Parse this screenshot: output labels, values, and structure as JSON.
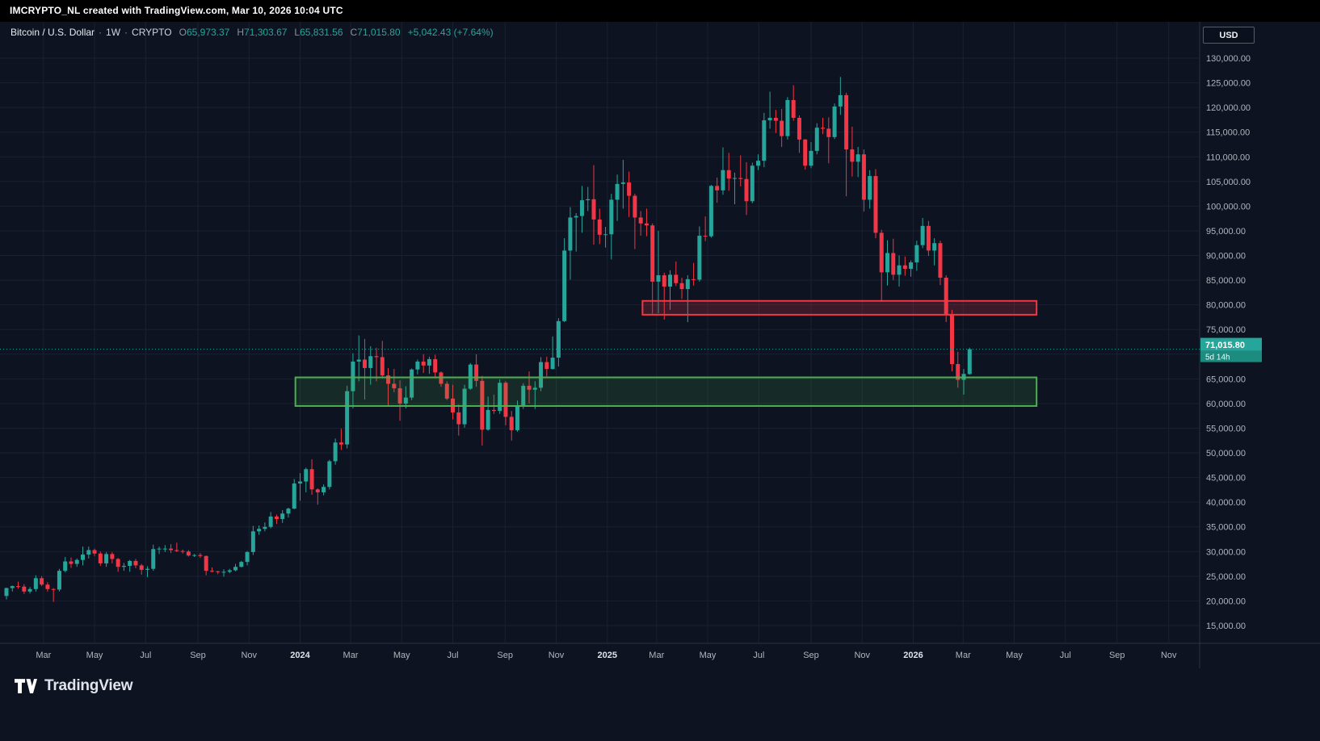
{
  "watermark": "IMCRYPTO_NL created with TradingView.com, Mar 10, 2026 10:04 UTC",
  "legend": {
    "symbol": "Bitcoin / U.S. Dollar",
    "sep": "·",
    "interval": "1W",
    "exchange": "CRYPTO",
    "open_label": "O",
    "open_value": "65,973.37",
    "high_label": "H",
    "high_value": "71,303.67",
    "low_label": "L",
    "low_value": "65,831.56",
    "close_label": "C",
    "close_value": "71,015.80",
    "change": "+5,042.43 (+7.64%)"
  },
  "currency_button": {
    "label": "USD"
  },
  "price_label": {
    "price": "71,015.80",
    "countdown": "5d 14h"
  },
  "logo": {
    "wordmark": "TradingView"
  },
  "colors": {
    "background": "#0d1321",
    "grid": "#1a2132",
    "axis_text": "#b2b5be",
    "axis_text_major": "#dde1ea",
    "separator": "#2a3140",
    "up": "#26a69a",
    "down": "#f23645",
    "price_line": "#26a69a",
    "label_bg": "#26a69a",
    "countdown_bg": "#1d8c80",
    "zone_support_stroke": "#4caf50",
    "zone_resistance_stroke": "#f23645"
  },
  "chart_data": {
    "type": "candlestick",
    "symbol": "BTCUSD",
    "interval": "1W",
    "title": "Bitcoin / U.S. Dollar weekly candles on CRYPTO, with support zone 59,500-65,300 and resistance zone 78,000-80,800",
    "current_price": 71015.8,
    "y_axis": {
      "min": 15000,
      "max": 130000,
      "step": 5000,
      "labels": [
        "130,000.00",
        "125,000.00",
        "120,000.00",
        "115,000.00",
        "110,000.00",
        "105,000.00",
        "100,000.00",
        "95,000.00",
        "90,000.00",
        "85,000.00",
        "80,000.00",
        "75,000.00",
        "70,000.00",
        "65,000.00",
        "60,000.00",
        "55,000.00",
        "50,000.00",
        "45,000.00",
        "40,000.00",
        "35,000.00",
        "30,000.00",
        "25,000.00",
        "20,000.00",
        "15,000.00"
      ]
    },
    "x_axis": {
      "labels": [
        {
          "text": "Mar",
          "week": 6.3,
          "major": false
        },
        {
          "text": "May",
          "week": 15,
          "major": false
        },
        {
          "text": "Jul",
          "week": 23.7,
          "major": false
        },
        {
          "text": "Sep",
          "week": 32.6,
          "major": false
        },
        {
          "text": "Nov",
          "week": 41.3,
          "major": false
        },
        {
          "text": "2024",
          "week": 50,
          "major": true
        },
        {
          "text": "Mar",
          "week": 58.6,
          "major": false
        },
        {
          "text": "May",
          "week": 67.3,
          "major": false
        },
        {
          "text": "Jul",
          "week": 76,
          "major": false
        },
        {
          "text": "Sep",
          "week": 84.9,
          "major": false
        },
        {
          "text": "Nov",
          "week": 93.6,
          "major": false
        },
        {
          "text": "2025",
          "week": 102.3,
          "major": true
        },
        {
          "text": "Mar",
          "week": 110.7,
          "major": false
        },
        {
          "text": "May",
          "week": 119.4,
          "major": false
        },
        {
          "text": "Jul",
          "week": 128.1,
          "major": false
        },
        {
          "text": "Sep",
          "week": 137,
          "major": false
        },
        {
          "text": "Nov",
          "week": 145.7,
          "major": false
        },
        {
          "text": "2026",
          "week": 154.4,
          "major": true
        },
        {
          "text": "Mar",
          "week": 162.9,
          "major": false
        },
        {
          "text": "May",
          "week": 171.6,
          "major": false
        },
        {
          "text": "Jul",
          "week": 180.3,
          "major": false
        },
        {
          "text": "Sep",
          "week": 189.1,
          "major": false
        },
        {
          "text": "Nov",
          "week": 197.9,
          "major": false
        }
      ]
    },
    "zones": [
      {
        "name": "support-zone",
        "week_start": 49.2,
        "week_end": 175.4,
        "price_top": 65300,
        "price_bottom": 59500,
        "stroke": "#4caf50",
        "fill": "rgba(76,175,80,0.16)"
      },
      {
        "name": "resistance-zone",
        "week_start": 108.3,
        "week_end": 175.4,
        "price_top": 80800,
        "price_bottom": 78000,
        "stroke": "#f23645",
        "fill": "rgba(242,54,69,0.2)"
      }
    ],
    "columns": [
      "open",
      "high",
      "low",
      "close"
    ],
    "candles": [
      [
        21000,
        22700,
        20300,
        22600
      ],
      [
        22600,
        23100,
        21900,
        23000
      ],
      [
        23000,
        23900,
        22500,
        22900
      ],
      [
        22900,
        23400,
        21400,
        21900
      ],
      [
        21900,
        22800,
        21500,
        22400
      ],
      [
        22400,
        25200,
        21900,
        24600
      ],
      [
        24600,
        25000,
        23000,
        23300
      ],
      [
        23300,
        23800,
        21900,
        22400
      ],
      [
        22400,
        22600,
        19800,
        22300
      ],
      [
        22300,
        26500,
        21900,
        26100
      ],
      [
        26100,
        28900,
        25800,
        28000
      ],
      [
        28000,
        28800,
        26700,
        27500
      ],
      [
        27500,
        28600,
        26900,
        28300
      ],
      [
        28300,
        31000,
        27200,
        29400
      ],
      [
        29400,
        31000,
        28600,
        30300
      ],
      [
        30300,
        30600,
        29100,
        29600
      ],
      [
        29600,
        30000,
        27100,
        27600
      ],
      [
        27600,
        29900,
        26900,
        29500
      ],
      [
        29500,
        29900,
        27600,
        28500
      ],
      [
        28500,
        28700,
        25900,
        26900
      ],
      [
        26900,
        27700,
        26100,
        27100
      ],
      [
        27100,
        28300,
        25900,
        28100
      ],
      [
        28100,
        28500,
        26600,
        27200
      ],
      [
        27200,
        27500,
        25300,
        26300
      ],
      [
        26300,
        27000,
        24800,
        26500
      ],
      [
        26500,
        31400,
        26100,
        30500
      ],
      [
        30500,
        31000,
        29500,
        30600
      ],
      [
        30600,
        31300,
        29900,
        30600
      ],
      [
        30600,
        31500,
        29700,
        30300
      ],
      [
        30300,
        31800,
        29900,
        30100
      ],
      [
        30100,
        30400,
        29600,
        30000
      ],
      [
        30000,
        30300,
        29000,
        29200
      ],
      [
        29200,
        29500,
        28900,
        29300
      ],
      [
        29300,
        29700,
        28700,
        29100
      ],
      [
        29100,
        29200,
        25200,
        26100
      ],
      [
        26100,
        26800,
        25800,
        26000
      ],
      [
        26000,
        26100,
        25400,
        25900
      ],
      [
        25900,
        26400,
        24900,
        25900
      ],
      [
        25900,
        26500,
        25600,
        26200
      ],
      [
        26200,
        27500,
        26000,
        26900
      ],
      [
        26900,
        28100,
        26800,
        27900
      ],
      [
        27900,
        30100,
        27200,
        29900
      ],
      [
        29900,
        35200,
        29300,
        34100
      ],
      [
        34100,
        35300,
        33400,
        34600
      ],
      [
        34600,
        35900,
        34100,
        35000
      ],
      [
        35000,
        38000,
        34700,
        37100
      ],
      [
        37100,
        37500,
        35600,
        36600
      ],
      [
        36600,
        38400,
        35800,
        37700
      ],
      [
        37700,
        38900,
        36900,
        38700
      ],
      [
        38700,
        44700,
        38600,
        43800
      ],
      [
        43800,
        45900,
        40300,
        44200
      ],
      [
        44200,
        47000,
        42000,
        46700
      ],
      [
        46700,
        48700,
        41500,
        42600
      ],
      [
        42600,
        42800,
        39500,
        42000
      ],
      [
        42000,
        43600,
        41400,
        43100
      ],
      [
        43100,
        48600,
        42600,
        48300
      ],
      [
        48300,
        52900,
        47600,
        52100
      ],
      [
        52100,
        54900,
        50600,
        51700
      ],
      [
        51700,
        63600,
        50900,
        62500
      ],
      [
        62500,
        70200,
        59000,
        68500
      ],
      [
        68500,
        73800,
        64500,
        68900
      ],
      [
        68900,
        73100,
        60800,
        67200
      ],
      [
        67200,
        71600,
        63800,
        69600
      ],
      [
        69600,
        71300,
        64500,
        69400
      ],
      [
        69400,
        72700,
        65100,
        65700
      ],
      [
        65700,
        67200,
        59600,
        64000
      ],
      [
        64000,
        67000,
        62300,
        63100
      ],
      [
        63100,
        64700,
        56500,
        60000
      ],
      [
        60000,
        63500,
        59000,
        61200
      ],
      [
        61200,
        67100,
        60700,
        66900
      ],
      [
        66900,
        68900,
        65900,
        68500
      ],
      [
        68500,
        70000,
        66200,
        67700
      ],
      [
        67700,
        69500,
        66000,
        69000
      ],
      [
        69000,
        69900,
        65100,
        66300
      ],
      [
        66300,
        66500,
        63400,
        64000
      ],
      [
        64000,
        64500,
        60700,
        61000
      ],
      [
        61000,
        63800,
        56800,
        58200
      ],
      [
        58200,
        59800,
        53500,
        55800
      ],
      [
        55800,
        63800,
        55100,
        63000
      ],
      [
        63000,
        68200,
        62800,
        67900
      ],
      [
        67900,
        70000,
        63400,
        64600
      ],
      [
        64600,
        65600,
        51500,
        54700
      ],
      [
        54700,
        61400,
        54500,
        58700
      ],
      [
        58700,
        61800,
        57900,
        58500
      ],
      [
        58500,
        64900,
        57900,
        64200
      ],
      [
        64200,
        64500,
        55600,
        57300
      ],
      [
        57300,
        58500,
        52500,
        54600
      ],
      [
        54600,
        60600,
        54300,
        59400
      ],
      [
        59400,
        64100,
        58900,
        63600
      ],
      [
        63600,
        66500,
        60000,
        62800
      ],
      [
        62800,
        64500,
        58900,
        63200
      ],
      [
        63200,
        69400,
        62500,
        68400
      ],
      [
        68400,
        69500,
        65500,
        67000
      ],
      [
        67000,
        73600,
        66900,
        69300
      ],
      [
        69300,
        77300,
        67500,
        76700
      ],
      [
        76700,
        93500,
        76500,
        91000
      ],
      [
        91000,
        99800,
        85100,
        97700
      ],
      [
        97700,
        98600,
        90800,
        98000
      ],
      [
        98000,
        104100,
        94600,
        101200
      ],
      [
        101200,
        103900,
        99000,
        101400
      ],
      [
        101400,
        108300,
        92200,
        97300
      ],
      [
        97300,
        99500,
        92300,
        94200
      ],
      [
        94200,
        95800,
        91600,
        94300
      ],
      [
        94300,
        102500,
        89200,
        101300
      ],
      [
        101300,
        106400,
        97000,
        104500
      ],
      [
        104500,
        109400,
        99500,
        104800
      ],
      [
        104800,
        107000,
        97800,
        102100
      ],
      [
        102100,
        102500,
        91300,
        97700
      ],
      [
        97700,
        99000,
        94000,
        96500
      ],
      [
        96500,
        99500,
        93900,
        96100
      ],
      [
        96100,
        96500,
        78200,
        84700
      ],
      [
        84700,
        95000,
        78300,
        86000
      ],
      [
        86000,
        86500,
        77000,
        83700
      ],
      [
        83700,
        87000,
        79000,
        86100
      ],
      [
        86100,
        88800,
        83800,
        84400
      ],
      [
        84400,
        85500,
        81200,
        83200
      ],
      [
        83200,
        86000,
        76500,
        85200
      ],
      [
        85200,
        88500,
        83900,
        85100
      ],
      [
        85100,
        95900,
        84700,
        94000
      ],
      [
        94000,
        97900,
        92900,
        93900
      ],
      [
        93900,
        104300,
        93600,
        104100
      ],
      [
        104100,
        105800,
        100700,
        103200
      ],
      [
        103200,
        111900,
        102300,
        107300
      ],
      [
        107300,
        110800,
        103100,
        105600
      ],
      [
        105600,
        106800,
        100400,
        105700
      ],
      [
        105700,
        110300,
        104000,
        105500
      ],
      [
        105500,
        108900,
        98200,
        101000
      ],
      [
        101000,
        108800,
        100600,
        108200
      ],
      [
        108200,
        110500,
        107300,
        109200
      ],
      [
        109200,
        118900,
        107900,
        117400
      ],
      [
        117400,
        123200,
        115700,
        117900
      ],
      [
        117900,
        119500,
        114800,
        117300
      ],
      [
        117300,
        119700,
        112000,
        114200
      ],
      [
        114200,
        122100,
        113500,
        121500
      ],
      [
        121500,
        124500,
        117300,
        117900
      ],
      [
        117900,
        118400,
        110800,
        113500
      ],
      [
        113500,
        113600,
        107400,
        108200
      ],
      [
        108200,
        113000,
        107700,
        111200
      ],
      [
        111200,
        116800,
        110500,
        115900
      ],
      [
        115900,
        117900,
        114600,
        115700
      ],
      [
        115700,
        118000,
        108700,
        114000
      ],
      [
        114000,
        120800,
        113600,
        120200
      ],
      [
        120200,
        126200,
        118500,
        122500
      ],
      [
        122500,
        123000,
        102000,
        111500
      ],
      [
        111500,
        116100,
        106000,
        109000
      ],
      [
        109000,
        112000,
        105900,
        110500
      ],
      [
        110500,
        111500,
        98900,
        101300
      ],
      [
        101300,
        107300,
        99500,
        106100
      ],
      [
        106100,
        107500,
        93500,
        94600
      ],
      [
        94600,
        95200,
        80600,
        86600
      ],
      [
        86600,
        93100,
        83900,
        90500
      ],
      [
        90500,
        93400,
        85000,
        86100
      ],
      [
        86100,
        90000,
        83700,
        88000
      ],
      [
        88000,
        89800,
        85900,
        87300
      ],
      [
        87300,
        89000,
        85700,
        88600
      ],
      [
        88600,
        93000,
        86900,
        92100
      ],
      [
        92100,
        97600,
        91500,
        96000
      ],
      [
        96000,
        97000,
        89900,
        91000
      ],
      [
        91000,
        93500,
        88000,
        92500
      ],
      [
        92500,
        93000,
        84000,
        85500
      ],
      [
        85500,
        86000,
        76500,
        78000
      ],
      [
        78000,
        79000,
        66500,
        68000
      ],
      [
        68000,
        70500,
        63200,
        64800
      ],
      [
        64800,
        67000,
        61800,
        66000
      ],
      [
        65973.37,
        71303.67,
        65831.56,
        71015.8
      ]
    ]
  }
}
